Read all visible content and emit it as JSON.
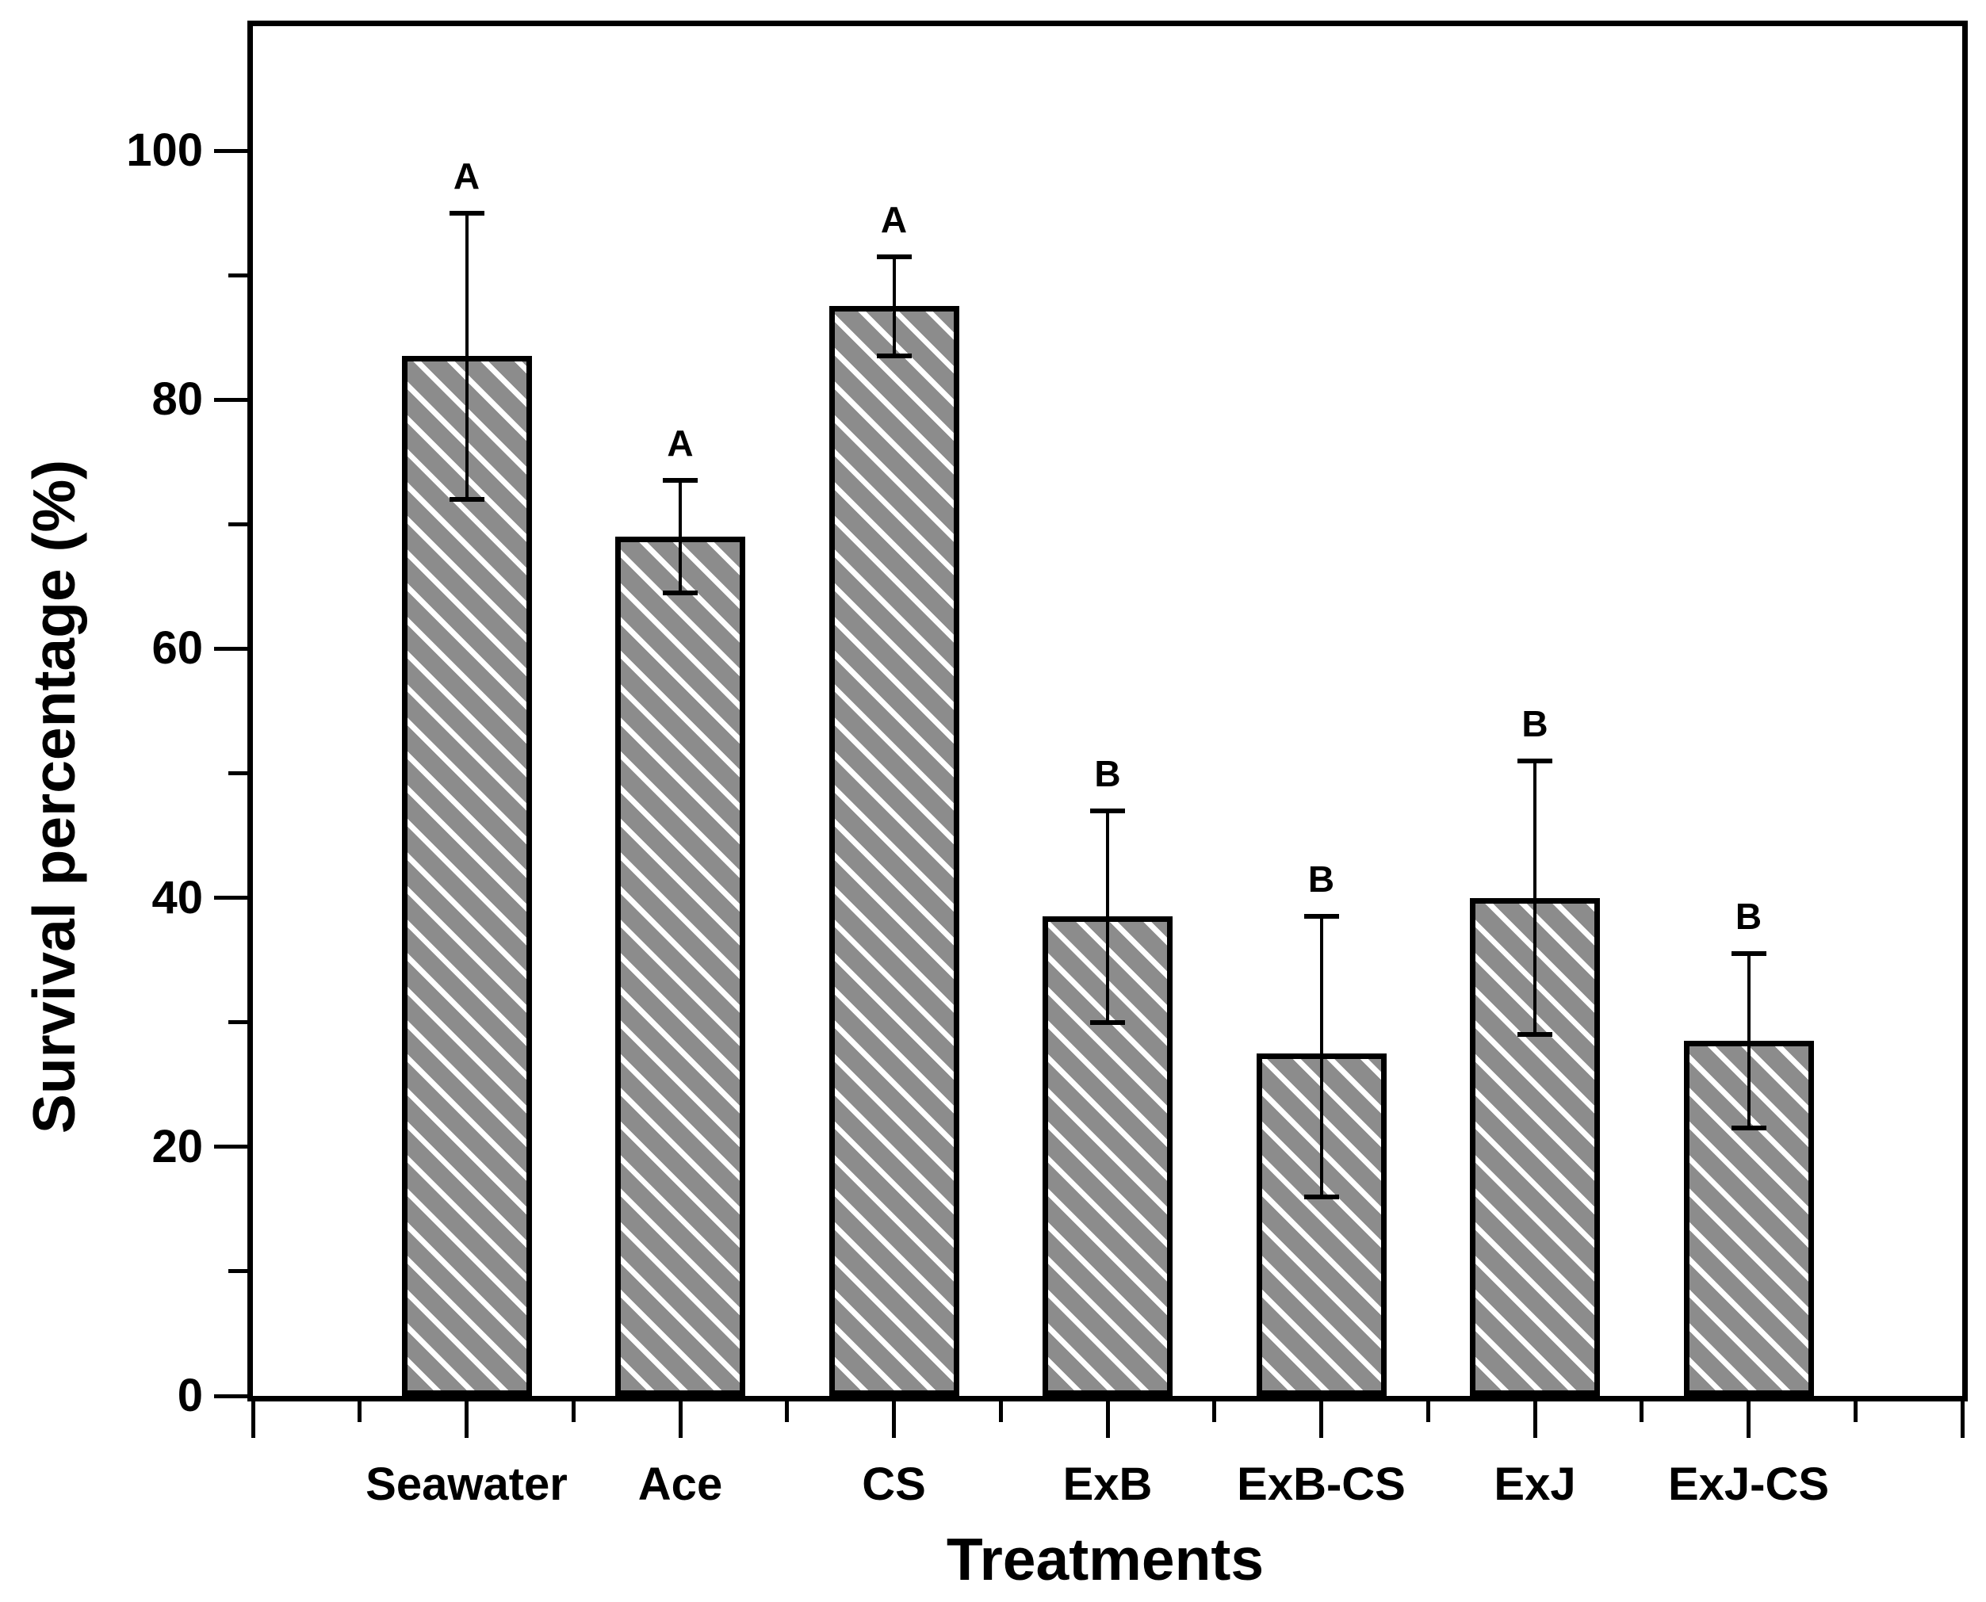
{
  "figure": {
    "background": "#ffffff",
    "frame_color": "#000000",
    "bar_fill": "#8c8c8c",
    "hatch_color": "#ffffff",
    "text_color": "#000000"
  },
  "chart_data": {
    "type": "bar",
    "title": "",
    "xlabel": "Treatments",
    "ylabel": "Survival percentage (%)",
    "categories": [
      "Seawater",
      "Ace",
      "CS",
      "ExB",
      "ExB-CS",
      "ExJ",
      "ExJ-CS"
    ],
    "series": [
      {
        "name": "Survival percentage",
        "values": [
          83.5,
          69,
          87.5,
          38.5,
          27.5,
          40,
          28.5
        ],
        "error_up": [
          11.5,
          4.5,
          4,
          8.5,
          11,
          11,
          7
        ],
        "error_down": [
          11.5,
          4.5,
          4,
          8.5,
          11.5,
          11,
          7
        ]
      }
    ],
    "sig_letters": [
      "A",
      "A",
      "A",
      "B",
      "B",
      "B",
      "B"
    ],
    "ylim": [
      0,
      110
    ],
    "yticks_major": [
      0,
      20,
      40,
      60,
      80,
      100
    ],
    "yticks_minor": [
      10,
      30,
      50,
      70,
      90
    ],
    "grid": false,
    "legend": "none",
    "bar_style": "gray fill with white diagonal hatch, thick black border",
    "error_bar_style": "black whiskers with caps, both directions"
  }
}
